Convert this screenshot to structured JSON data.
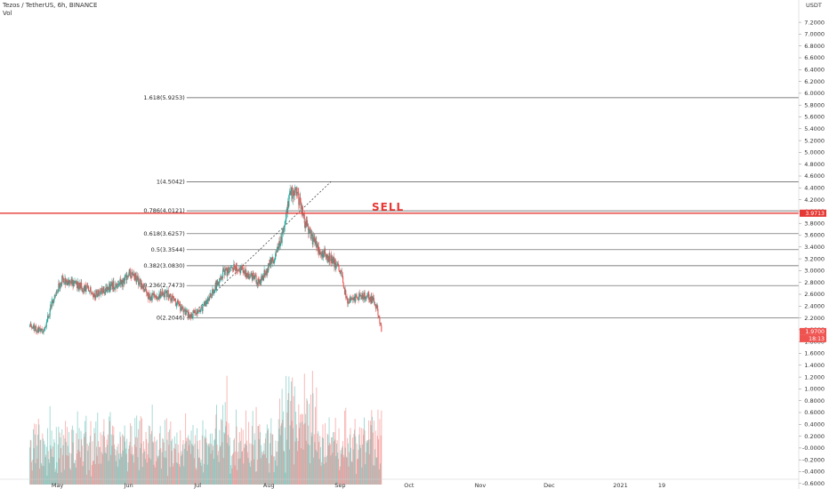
{
  "header": {
    "title": "Tezos / TetherUS, 6h, BINANCE",
    "volume_label": "Vol",
    "currency": "USDT"
  },
  "colors": {
    "up": "#26a69a",
    "down": "#ef5350",
    "sell": "#e53935",
    "fib_line": "#555555"
  },
  "chart_data": {
    "type": "candlestick",
    "y_axis_ticks": [
      "7.2000",
      "7.0000",
      "6.8000",
      "6.6000",
      "6.4000",
      "6.2000",
      "6.0000",
      "5.8000",
      "5.6000",
      "5.4000",
      "5.2000",
      "5.0000",
      "4.8000",
      "4.6000",
      "4.4000",
      "4.2000",
      "4.0000",
      "3.8000",
      "3.6000",
      "3.4000",
      "3.2000",
      "3.0000",
      "2.8000",
      "2.6000",
      "2.4000",
      "2.2000",
      "2.0000",
      "1.8000",
      "1.6000",
      "1.4000",
      "1.2000",
      "1.0000",
      "0.8000",
      "0.6000",
      "0.4000",
      "0.2000",
      "-0.0000",
      "-0.2000",
      "-0.4000",
      "-0.6000"
    ],
    "x_axis_labels": [
      "May",
      "Jun",
      "Jul",
      "Aug",
      "Sep",
      "Oct",
      "Nov",
      "Dec",
      "2021",
      "19"
    ],
    "ylim": [
      -0.7,
      7.25
    ],
    "fib_levels": [
      {
        "label": "1.618(5.9253)",
        "value": 5.9253
      },
      {
        "label": "1(4.5042)",
        "value": 4.5042
      },
      {
        "label": "0.786(4.0121)",
        "value": 4.0121
      },
      {
        "label": "0.618(3.6257)",
        "value": 3.6257
      },
      {
        "label": "0.5(3.3544)",
        "value": 3.3544
      },
      {
        "label": "0.382(3.0830)",
        "value": 3.083
      },
      {
        "label": "0.236(2.7473)",
        "value": 2.7473
      },
      {
        "label": "0(2.2046)",
        "value": 2.2046
      }
    ],
    "sell_line": {
      "label": "SELL",
      "value": 3.9713,
      "tag": "3.9713"
    },
    "last_price": {
      "value": 1.97,
      "tag": "1.9700",
      "countdown": "18:13"
    },
    "price_anchors": [
      {
        "t": "Apr 19",
        "price": 2.05
      },
      {
        "t": "Apr 25",
        "price": 1.95
      },
      {
        "t": "Apr 29",
        "price": 2.5
      },
      {
        "t": "May 3",
        "price": 2.85
      },
      {
        "t": "May 10",
        "price": 2.75
      },
      {
        "t": "May 18",
        "price": 2.6
      },
      {
        "t": "May 25",
        "price": 2.75
      },
      {
        "t": "May 30",
        "price": 2.8
      },
      {
        "t": "Jun 1",
        "price": 2.95
      },
      {
        "t": "Jun 5",
        "price": 2.85
      },
      {
        "t": "Jun 10",
        "price": 2.55
      },
      {
        "t": "Jun 18",
        "price": 2.6
      },
      {
        "t": "Jun 27",
        "price": 2.25
      },
      {
        "t": "Jul 2",
        "price": 2.3
      },
      {
        "t": "Jul 7",
        "price": 2.6
      },
      {
        "t": "Jul 12",
        "price": 2.95
      },
      {
        "t": "Jul 18",
        "price": 3.05
      },
      {
        "t": "Jul 23",
        "price": 2.95
      },
      {
        "t": "Jul 28",
        "price": 2.8
      },
      {
        "t": "Aug 3",
        "price": 3.2
      },
      {
        "t": "Aug 7",
        "price": 3.6
      },
      {
        "t": "Aug 10",
        "price": 4.3
      },
      {
        "t": "Aug 13",
        "price": 4.35
      },
      {
        "t": "Aug 16",
        "price": 3.9
      },
      {
        "t": "Aug 19",
        "price": 3.6
      },
      {
        "t": "Aug 23",
        "price": 3.35
      },
      {
        "t": "Aug 28",
        "price": 3.2
      },
      {
        "t": "Sep 1",
        "price": 3.0
      },
      {
        "t": "Sep 4",
        "price": 2.5
      },
      {
        "t": "Sep 8",
        "price": 2.55
      },
      {
        "t": "Sep 13",
        "price": 2.6
      },
      {
        "t": "Sep 17",
        "price": 2.4
      },
      {
        "t": "Sep 19",
        "price": 1.97
      }
    ],
    "trend_line": {
      "from": {
        "t": "Jun 27",
        "price": 2.2046
      },
      "to": {
        "t": "Aug 28",
        "price": 4.5042
      }
    }
  }
}
